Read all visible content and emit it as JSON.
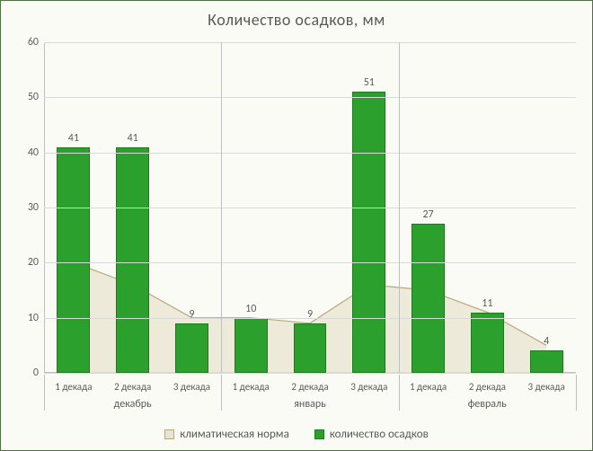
{
  "chart": {
    "type": "bar+area",
    "title": "Количество  осадков, мм",
    "title_fontsize": 18,
    "font_family": "Calibri, Arial, sans-serif",
    "background_color": "#fbfbf6",
    "frame_border_color": "#4f7045",
    "grid_color": "#d9d9d9",
    "axis_color": "#bfbfbf",
    "text_color": "#595959",
    "ylim": [
      0,
      60
    ],
    "ytick_step": 10,
    "yticks": [
      0,
      10,
      20,
      30,
      40,
      50,
      60
    ],
    "categories": [
      "1 декада",
      "2 декада",
      "3 декада",
      "1 декада",
      "2 декада",
      "3 декада",
      "1 декада",
      "2 декада",
      "3 декада"
    ],
    "category_fontsize": 11,
    "groups": [
      {
        "label": "декабрь",
        "span": 3
      },
      {
        "label": "январь",
        "span": 3
      },
      {
        "label": "февраль",
        "span": 3
      }
    ],
    "bars": {
      "label": "количество осадков",
      "color": "#2ca02c",
      "border_color": "#1f7a1f",
      "width_ratio": 0.56,
      "values": [
        41,
        41,
        9,
        10,
        9,
        51,
        27,
        11,
        4
      ],
      "value_labels": [
        "41",
        "41",
        "9",
        "10",
        "9",
        "51",
        "27",
        "11",
        "4"
      ],
      "label_fontsize": 12
    },
    "area": {
      "label": "климатическая норма",
      "line_color": "#b9a77a",
      "fill_color": "#e8e4d0",
      "fill_opacity": 0.75,
      "values": [
        20,
        16,
        10,
        10,
        9,
        16,
        15,
        11,
        5
      ],
      "marker": "none",
      "line_width": 1.2
    },
    "legend": {
      "position": "bottom-center",
      "items": [
        {
          "key": "area",
          "label": "климатическая норма"
        },
        {
          "key": "bars",
          "label": "количество осадков"
        }
      ]
    }
  }
}
